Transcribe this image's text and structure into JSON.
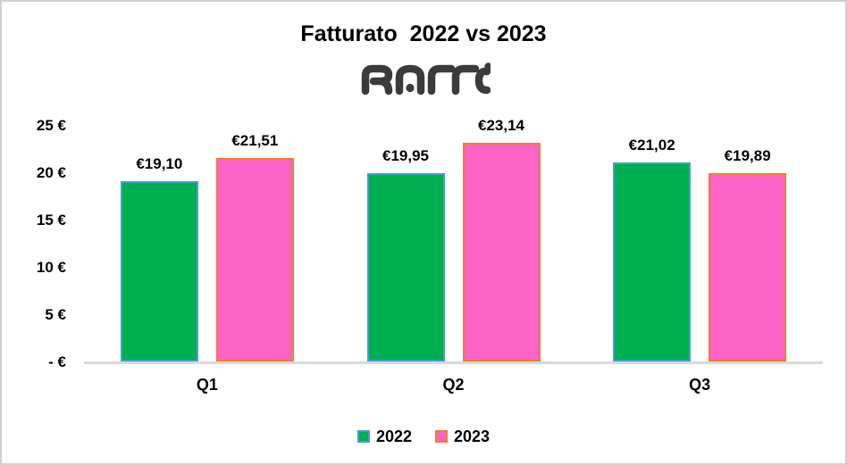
{
  "frame": {
    "background": "#FFFFFF",
    "border_color": "#CFCFCF"
  },
  "logo": {
    "text": "RATTI",
    "color": "#3B3B3D"
  },
  "chart_data": {
    "type": "bar",
    "title": "Fatturato  2022 vs 2023",
    "categories": [
      "Q1",
      "Q2",
      "Q3"
    ],
    "series": [
      {
        "name": "2022",
        "values": [
          19.1,
          19.95,
          21.02
        ],
        "labels": [
          "€19,10",
          "€19,95",
          "€21,02"
        ],
        "fill": "#00B050",
        "border": "#41A0CC"
      },
      {
        "name": "2023",
        "values": [
          21.51,
          23.14,
          19.89
        ],
        "labels": [
          "€21,51",
          "€23,14",
          "€19,89"
        ],
        "fill": "#FF63C6",
        "border": "#ED7D31"
      }
    ],
    "ylim": [
      0,
      25
    ],
    "yticks": [
      {
        "value": 25,
        "label": "25 €"
      },
      {
        "value": 20,
        "label": "20 €"
      },
      {
        "value": 15,
        "label": "15 €"
      },
      {
        "value": 10,
        "label": "10 €"
      },
      {
        "value": 5,
        "label": "5 €"
      },
      {
        "value": 0,
        "label": "- €"
      }
    ],
    "grid": false,
    "legend_position": "bottom",
    "axis_line_color": "#D9D9D9"
  }
}
